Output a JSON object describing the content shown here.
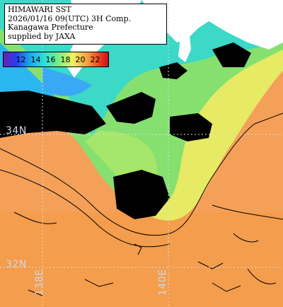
{
  "info": {
    "line1": "HIMAWARI SST",
    "line2": "2026/01/16 09(UTC) 3H Comp.",
    "line3": "Kanagawa Prefecture",
    "line4": "supplied by JAXA"
  },
  "legend": {
    "ticks": [
      "12",
      "14",
      "16",
      "18",
      "20",
      "22"
    ]
  },
  "grid_labels": {
    "lat_34": "34N",
    "lat_32": "32N",
    "lon_138": "138E",
    "lon_140": "140E"
  },
  "colors": {
    "land": "#ffffff",
    "cloud": "#000000",
    "warm_sea": "#f5a25a",
    "mid_sea": "#7ee06e",
    "cool_sea": "#2ab8f2",
    "transition": "#e6ec6a"
  }
}
